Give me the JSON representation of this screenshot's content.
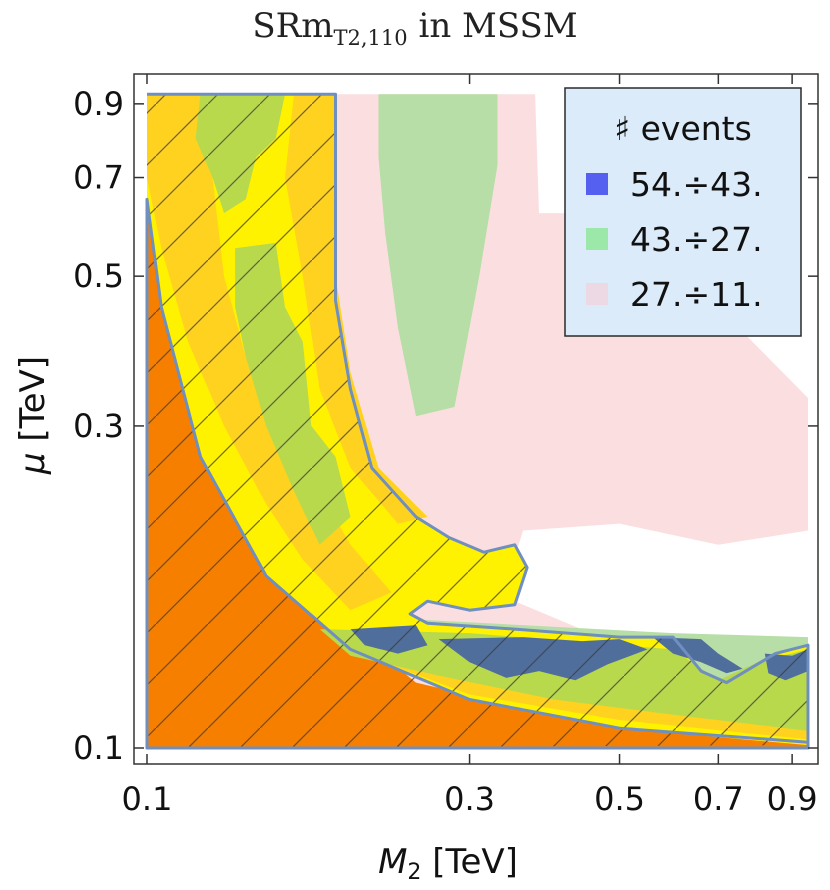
{
  "chart_data": {
    "type": "contour",
    "title_main": "SRm",
    "title_sub": "T2,110",
    "title_rest": " in MSSM",
    "xlabel_symbol": "M",
    "xlabel_sub": "2",
    "xlabel_unit": " [TeV]",
    "ylabel_symbol": "μ",
    "ylabel_unit": " [TeV]",
    "x_scale": "log",
    "y_scale": "log",
    "xlim": [
      0.1,
      0.95
    ],
    "ylim": [
      0.1,
      0.95
    ],
    "x_ticks": [
      {
        "value": 0.1,
        "label": "0.1"
      },
      {
        "value": 0.3,
        "label": "0.3"
      },
      {
        "value": 0.5,
        "label": "0.5"
      },
      {
        "value": 0.7,
        "label": "0.7"
      },
      {
        "value": 0.9,
        "label": "0.9"
      }
    ],
    "y_ticks": [
      {
        "value": 0.1,
        "label": "0.1"
      },
      {
        "value": 0.3,
        "label": "0.3"
      },
      {
        "value": 0.5,
        "label": "0.5"
      },
      {
        "value": 0.7,
        "label": "0.7"
      },
      {
        "value": 0.9,
        "label": "0.9"
      }
    ],
    "legend": {
      "title": "♯ events",
      "placement": "top-right",
      "entries": [
        {
          "label": "54.÷43.",
          "color": "#5560f0"
        },
        {
          "label": "43.÷27.",
          "color": "#9be8a8"
        },
        {
          "label": "27.÷11.",
          "color": "#ecd9e4"
        }
      ]
    },
    "colors": {
      "excluded_orange": "#f77f00",
      "yellow_band": "#fff200",
      "gold_patch": "#ffd21f",
      "green_patch": "#b9d94c",
      "blue_patch": "#4f6e9c",
      "pink_region": "#fbdfe0",
      "green_region": "#b7dea6",
      "boundary": "#6f8fbf",
      "legend_bg": "#dcebf9"
    },
    "regions": [
      {
        "name": "excluded-region",
        "color": "#f77f00",
        "points": [
          [
            0.1,
            0.1
          ],
          [
            0.95,
            0.1
          ],
          [
            0.95,
            0.102
          ],
          [
            0.5,
            0.107
          ],
          [
            0.3,
            0.118
          ],
          [
            0.2,
            0.14
          ],
          [
            0.15,
            0.18
          ],
          [
            0.12,
            0.27
          ],
          [
            0.105,
            0.45
          ],
          [
            0.1,
            0.65
          ]
        ]
      },
      {
        "name": "pink-region",
        "color": "#fbdfe0",
        "points": [
          [
            0.19,
            0.93
          ],
          [
            0.375,
            0.93
          ],
          [
            0.38,
            0.62
          ],
          [
            0.5,
            0.62
          ],
          [
            0.55,
            0.55
          ],
          [
            0.7,
            0.45
          ],
          [
            0.95,
            0.33
          ],
          [
            0.95,
            0.21
          ],
          [
            0.7,
            0.2
          ],
          [
            0.5,
            0.215
          ],
          [
            0.36,
            0.21
          ],
          [
            0.34,
            0.175
          ],
          [
            0.35,
            0.165
          ],
          [
            0.5,
            0.142
          ],
          [
            0.8,
            0.14
          ],
          [
            0.95,
            0.14
          ],
          [
            0.95,
            0.11
          ],
          [
            0.4,
            0.112
          ],
          [
            0.25,
            0.125
          ],
          [
            0.2,
            0.15
          ],
          [
            0.19,
            0.3
          ]
        ]
      },
      {
        "name": "green-region-upper",
        "color": "#b7dea6",
        "points": [
          [
            0.22,
            0.93
          ],
          [
            0.33,
            0.93
          ],
          [
            0.33,
            0.73
          ],
          [
            0.31,
            0.5
          ],
          [
            0.285,
            0.32
          ],
          [
            0.25,
            0.31
          ],
          [
            0.235,
            0.42
          ],
          [
            0.225,
            0.58
          ],
          [
            0.22,
            0.75
          ]
        ]
      },
      {
        "name": "green-region-lower",
        "color": "#b7dea6",
        "points": [
          [
            0.25,
            0.155
          ],
          [
            0.6,
            0.148
          ],
          [
            0.95,
            0.146
          ],
          [
            0.95,
            0.115
          ],
          [
            0.5,
            0.118
          ],
          [
            0.3,
            0.128
          ],
          [
            0.25,
            0.14
          ]
        ]
      },
      {
        "name": "yellow-band",
        "color": "#fff200",
        "points": [
          [
            0.1,
            0.93
          ],
          [
            0.19,
            0.93
          ],
          [
            0.19,
            0.46
          ],
          [
            0.2,
            0.34
          ],
          [
            0.215,
            0.26
          ],
          [
            0.25,
            0.22
          ],
          [
            0.28,
            0.205
          ],
          [
            0.315,
            0.195
          ],
          [
            0.35,
            0.2
          ],
          [
            0.365,
            0.185
          ],
          [
            0.35,
            0.163
          ],
          [
            0.3,
            0.16
          ],
          [
            0.26,
            0.165
          ],
          [
            0.245,
            0.158
          ],
          [
            0.26,
            0.153
          ],
          [
            0.35,
            0.15
          ],
          [
            0.5,
            0.146
          ],
          [
            0.6,
            0.146
          ],
          [
            0.66,
            0.13
          ],
          [
            0.72,
            0.125
          ],
          [
            0.85,
            0.138
          ],
          [
            0.95,
            0.142
          ],
          [
            0.95,
            0.101
          ],
          [
            0.5,
            0.107
          ],
          [
            0.3,
            0.118
          ],
          [
            0.2,
            0.14
          ],
          [
            0.15,
            0.18
          ],
          [
            0.12,
            0.27
          ],
          [
            0.105,
            0.45
          ],
          [
            0.1,
            0.65
          ]
        ]
      },
      {
        "name": "gold-patch-left",
        "color": "#ffd21f",
        "points": [
          [
            0.1,
            0.93
          ],
          [
            0.13,
            0.93
          ],
          [
            0.125,
            0.7
          ],
          [
            0.13,
            0.5
          ],
          [
            0.14,
            0.38
          ],
          [
            0.16,
            0.3
          ],
          [
            0.18,
            0.24
          ],
          [
            0.2,
            0.2
          ],
          [
            0.23,
            0.17
          ],
          [
            0.2,
            0.16
          ],
          [
            0.17,
            0.19
          ],
          [
            0.15,
            0.23
          ],
          [
            0.13,
            0.3
          ],
          [
            0.115,
            0.4
          ],
          [
            0.105,
            0.55
          ],
          [
            0.1,
            0.7
          ]
        ]
      },
      {
        "name": "gold-patch-right",
        "color": "#ffd21f",
        "points": [
          [
            0.165,
            0.93
          ],
          [
            0.19,
            0.93
          ],
          [
            0.19,
            0.5
          ],
          [
            0.2,
            0.36
          ],
          [
            0.22,
            0.26
          ],
          [
            0.26,
            0.22
          ],
          [
            0.235,
            0.215
          ],
          [
            0.2,
            0.26
          ],
          [
            0.18,
            0.34
          ],
          [
            0.17,
            0.5
          ],
          [
            0.16,
            0.7
          ]
        ]
      },
      {
        "name": "gold-patch-bottom",
        "color": "#ffd21f",
        "points": [
          [
            0.2,
            0.14
          ],
          [
            0.3,
            0.12
          ],
          [
            0.5,
            0.11
          ],
          [
            0.95,
            0.103
          ],
          [
            0.95,
            0.108
          ],
          [
            0.6,
            0.114
          ],
          [
            0.35,
            0.122
          ],
          [
            0.25,
            0.135
          ]
        ]
      },
      {
        "name": "green-patch-top",
        "color": "#b9d94c",
        "points": [
          [
            0.12,
            0.93
          ],
          [
            0.16,
            0.93
          ],
          [
            0.155,
            0.8
          ],
          [
            0.145,
            0.75
          ],
          [
            0.14,
            0.65
          ],
          [
            0.13,
            0.62
          ],
          [
            0.125,
            0.7
          ],
          [
            0.118,
            0.8
          ]
        ]
      },
      {
        "name": "green-patch-mid",
        "color": "#b9d94c",
        "points": [
          [
            0.135,
            0.55
          ],
          [
            0.155,
            0.56
          ],
          [
            0.16,
            0.45
          ],
          [
            0.17,
            0.4
          ],
          [
            0.175,
            0.3
          ],
          [
            0.19,
            0.27
          ],
          [
            0.2,
            0.22
          ],
          [
            0.18,
            0.2
          ],
          [
            0.165,
            0.24
          ],
          [
            0.15,
            0.3
          ],
          [
            0.14,
            0.38
          ],
          [
            0.135,
            0.45
          ]
        ]
      },
      {
        "name": "green-patch-bottom",
        "color": "#b9d94c",
        "points": [
          [
            0.18,
            0.15
          ],
          [
            0.3,
            0.148
          ],
          [
            0.5,
            0.142
          ],
          [
            0.6,
            0.14
          ],
          [
            0.7,
            0.126
          ],
          [
            0.8,
            0.134
          ],
          [
            0.95,
            0.14
          ],
          [
            0.95,
            0.106
          ],
          [
            0.6,
            0.112
          ],
          [
            0.4,
            0.118
          ],
          [
            0.27,
            0.128
          ],
          [
            0.2,
            0.137
          ]
        ]
      },
      {
        "name": "blue-patch-1",
        "color": "#4f6e9c",
        "points": [
          [
            0.2,
            0.15
          ],
          [
            0.25,
            0.152
          ],
          [
            0.26,
            0.142
          ],
          [
            0.235,
            0.138
          ],
          [
            0.21,
            0.142
          ]
        ]
      },
      {
        "name": "blue-patch-2",
        "color": "#4f6e9c",
        "points": [
          [
            0.27,
            0.145
          ],
          [
            0.36,
            0.146
          ],
          [
            0.44,
            0.144
          ],
          [
            0.5,
            0.145
          ],
          [
            0.55,
            0.14
          ],
          [
            0.48,
            0.133
          ],
          [
            0.43,
            0.126
          ],
          [
            0.38,
            0.13
          ],
          [
            0.34,
            0.127
          ],
          [
            0.3,
            0.134
          ]
        ]
      },
      {
        "name": "blue-patch-3",
        "color": "#4f6e9c",
        "points": [
          [
            0.56,
            0.146
          ],
          [
            0.66,
            0.145
          ],
          [
            0.7,
            0.138
          ],
          [
            0.76,
            0.131
          ],
          [
            0.72,
            0.129
          ],
          [
            0.66,
            0.134
          ],
          [
            0.6,
            0.138
          ]
        ]
      },
      {
        "name": "blue-patch-4",
        "color": "#4f6e9c",
        "points": [
          [
            0.82,
            0.138
          ],
          [
            0.9,
            0.137
          ],
          [
            0.95,
            0.14
          ],
          [
            0.95,
            0.13
          ],
          [
            0.88,
            0.126
          ],
          [
            0.83,
            0.129
          ]
        ]
      }
    ],
    "exclusion_boundary": [
      [
        0.1,
        0.1
      ],
      [
        0.95,
        0.1
      ],
      [
        0.95,
        0.102
      ],
      [
        0.5,
        0.107
      ],
      [
        0.3,
        0.118
      ],
      [
        0.2,
        0.14
      ],
      [
        0.15,
        0.18
      ],
      [
        0.12,
        0.27
      ],
      [
        0.105,
        0.45
      ],
      [
        0.1,
        0.65
      ]
    ],
    "band_boundary": [
      [
        0.1,
        0.93
      ],
      [
        0.19,
        0.93
      ],
      [
        0.19,
        0.46
      ],
      [
        0.2,
        0.34
      ],
      [
        0.215,
        0.26
      ],
      [
        0.25,
        0.22
      ],
      [
        0.28,
        0.205
      ],
      [
        0.315,
        0.195
      ],
      [
        0.35,
        0.2
      ],
      [
        0.365,
        0.185
      ],
      [
        0.35,
        0.163
      ],
      [
        0.3,
        0.16
      ],
      [
        0.26,
        0.165
      ],
      [
        0.245,
        0.158
      ],
      [
        0.26,
        0.153
      ],
      [
        0.35,
        0.15
      ],
      [
        0.5,
        0.146
      ],
      [
        0.6,
        0.146
      ],
      [
        0.66,
        0.13
      ],
      [
        0.72,
        0.125
      ],
      [
        0.85,
        0.138
      ],
      [
        0.95,
        0.142
      ],
      [
        0.95,
        0.101
      ]
    ]
  }
}
